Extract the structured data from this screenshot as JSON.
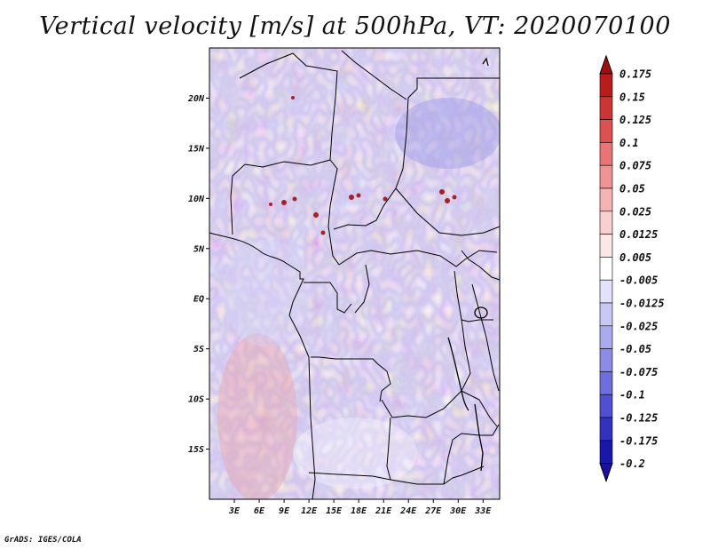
{
  "title": "Vertical velocity [m/s] at 500hPa, VT: 2020070100",
  "footer": "GrADS: IGES/COLA",
  "map": {
    "lon_range": [
      0,
      35
    ],
    "lat_range": [
      -20,
      25
    ],
    "lat_ticks": [
      {
        "value": 20,
        "label": "20N"
      },
      {
        "value": 15,
        "label": "15N"
      },
      {
        "value": 10,
        "label": "10N"
      },
      {
        "value": 5,
        "label": "5N"
      },
      {
        "value": 0,
        "label": "EQ"
      },
      {
        "value": -5,
        "label": "5S"
      },
      {
        "value": -10,
        "label": "10S"
      },
      {
        "value": -15,
        "label": "15S"
      }
    ],
    "lon_ticks": [
      {
        "value": 3,
        "label": "3E"
      },
      {
        "value": 6,
        "label": "6E"
      },
      {
        "value": 9,
        "label": "9E"
      },
      {
        "value": 12,
        "label": "12E"
      },
      {
        "value": 15,
        "label": "15E"
      },
      {
        "value": 18,
        "label": "18E"
      },
      {
        "value": 21,
        "label": "21E"
      },
      {
        "value": 24,
        "label": "24E"
      },
      {
        "value": 27,
        "label": "27E"
      },
      {
        "value": 30,
        "label": "30E"
      },
      {
        "value": 33,
        "label": "33E"
      }
    ]
  },
  "colorbar": {
    "levels": [
      {
        "label": "0.175",
        "color": "#a00f10"
      },
      {
        "label": "0.15",
        "color": "#b81c1c"
      },
      {
        "label": "0.125",
        "color": "#cc3535"
      },
      {
        "label": "0.1",
        "color": "#dc5252"
      },
      {
        "label": "0.075",
        "color": "#e87474"
      },
      {
        "label": "0.05",
        "color": "#ef9494"
      },
      {
        "label": "0.025",
        "color": "#f5b4b4"
      },
      {
        "label": "0.0125",
        "color": "#f9d0d0"
      },
      {
        "label": "0.005",
        "color": "#fce6e6"
      },
      {
        "label": "-0.005",
        "color": "#ffffff"
      },
      {
        "label": "-0.0125",
        "color": "#e2e2fb"
      },
      {
        "label": "-0.025",
        "color": "#c8c8f5"
      },
      {
        "label": "-0.05",
        "color": "#aaaaee"
      },
      {
        "label": "-0.075",
        "color": "#8c8ce6"
      },
      {
        "label": "-0.1",
        "color": "#6e6edc"
      },
      {
        "label": "-0.125",
        "color": "#5050d0"
      },
      {
        "label": "-0.175",
        "color": "#3232c0"
      },
      {
        "label": "-0.2",
        "color": "#1818a8"
      }
    ],
    "top_color": "#a00f10",
    "bottom_color": "#1c10a0"
  }
}
